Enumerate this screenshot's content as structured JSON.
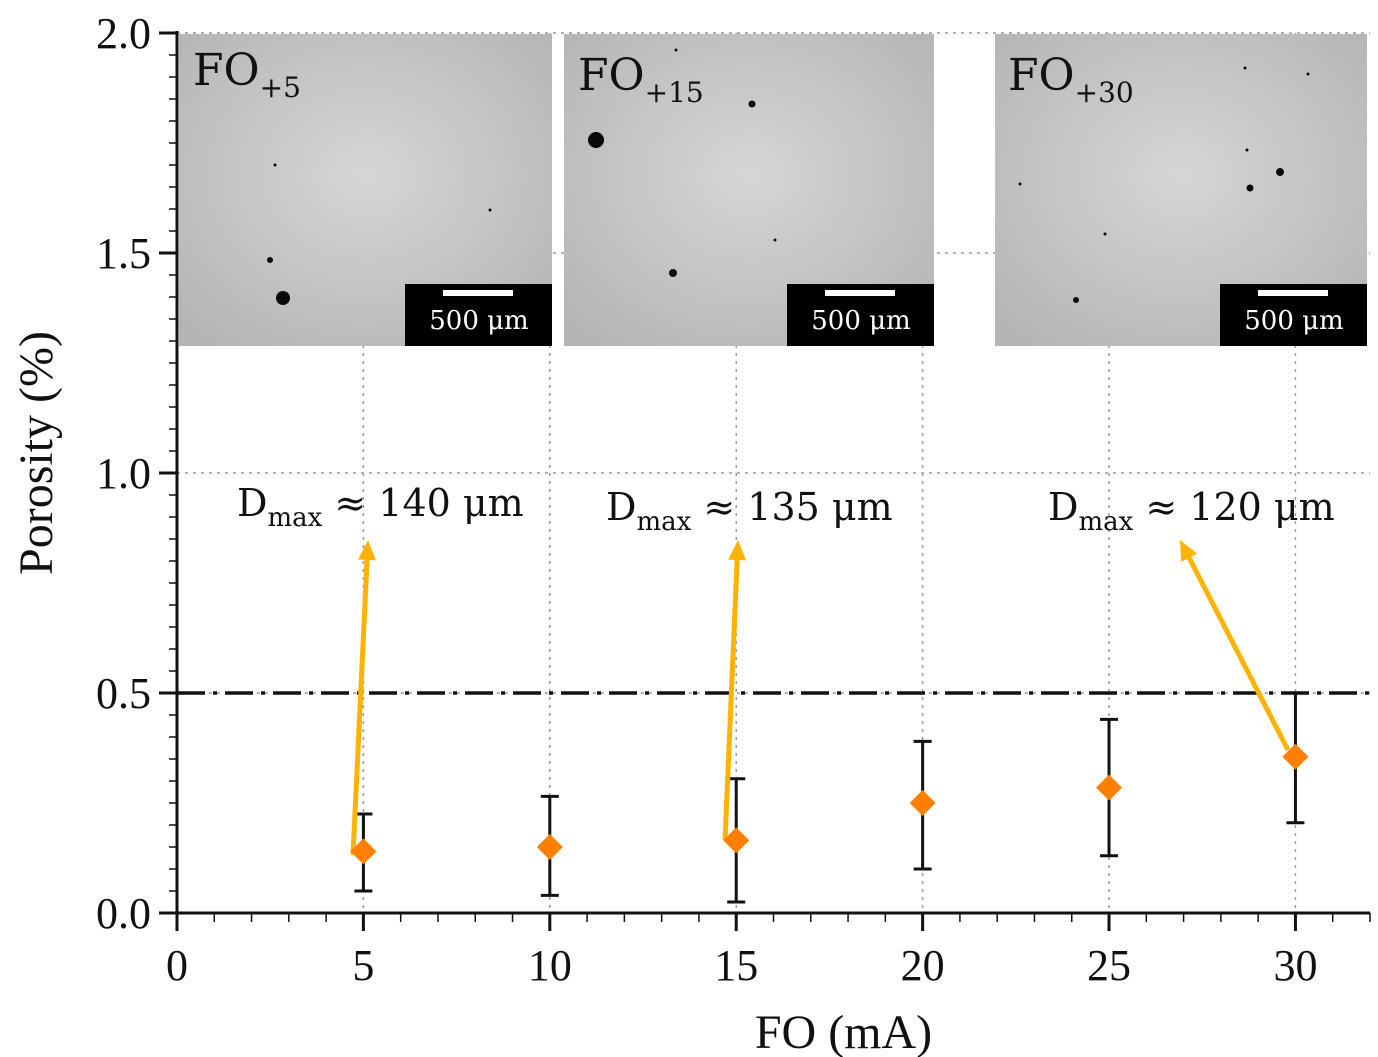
{
  "chart_data": {
    "type": "scatter",
    "xlabel": "FO (mA)",
    "ylabel": "Porosity (%)",
    "xlim": [
      0,
      32
    ],
    "ylim": [
      0,
      2.0
    ],
    "x_ticks": [
      "0",
      "5",
      "10",
      "15",
      "20",
      "25",
      "30"
    ],
    "y_ticks": [
      "0.0",
      "0.5",
      "1.0",
      "1.5",
      "2.0"
    ],
    "grid": "dotted at major ticks",
    "threshold_line": {
      "y": 0.5,
      "style": "dash-dot"
    },
    "series": [
      {
        "x": [
          5,
          10,
          15,
          20,
          25,
          30
        ],
        "y": [
          0.14,
          0.15,
          0.165,
          0.25,
          0.285,
          0.355
        ],
        "error_low": [
          0.05,
          0.04,
          0.025,
          0.1,
          0.13,
          0.205
        ],
        "error_high": [
          0.225,
          0.265,
          0.305,
          0.39,
          0.44,
          0.5
        ],
        "marker": "diamond",
        "color": "#ff8000"
      }
    ],
    "annotations": [
      {
        "base": "D",
        "sub": "max",
        "rest": " ≈ 140 μm",
        "point_x": 5
      },
      {
        "base": "D",
        "sub": "max",
        "rest": " ≈ 135 μm",
        "point_x": 15
      },
      {
        "base": "D",
        "sub": "max",
        "rest": " ≈ 120 μm",
        "point_x": 30
      }
    ],
    "insets": [
      {
        "label": "FO",
        "sub": "+5",
        "scale_bar": "500 μm"
      },
      {
        "label": "FO",
        "sub": "+15",
        "scale_bar": "500 μm"
      },
      {
        "label": "FO",
        "sub": "+30",
        "scale_bar": "500 μm"
      }
    ],
    "arrow_color": "#ffb300"
  }
}
